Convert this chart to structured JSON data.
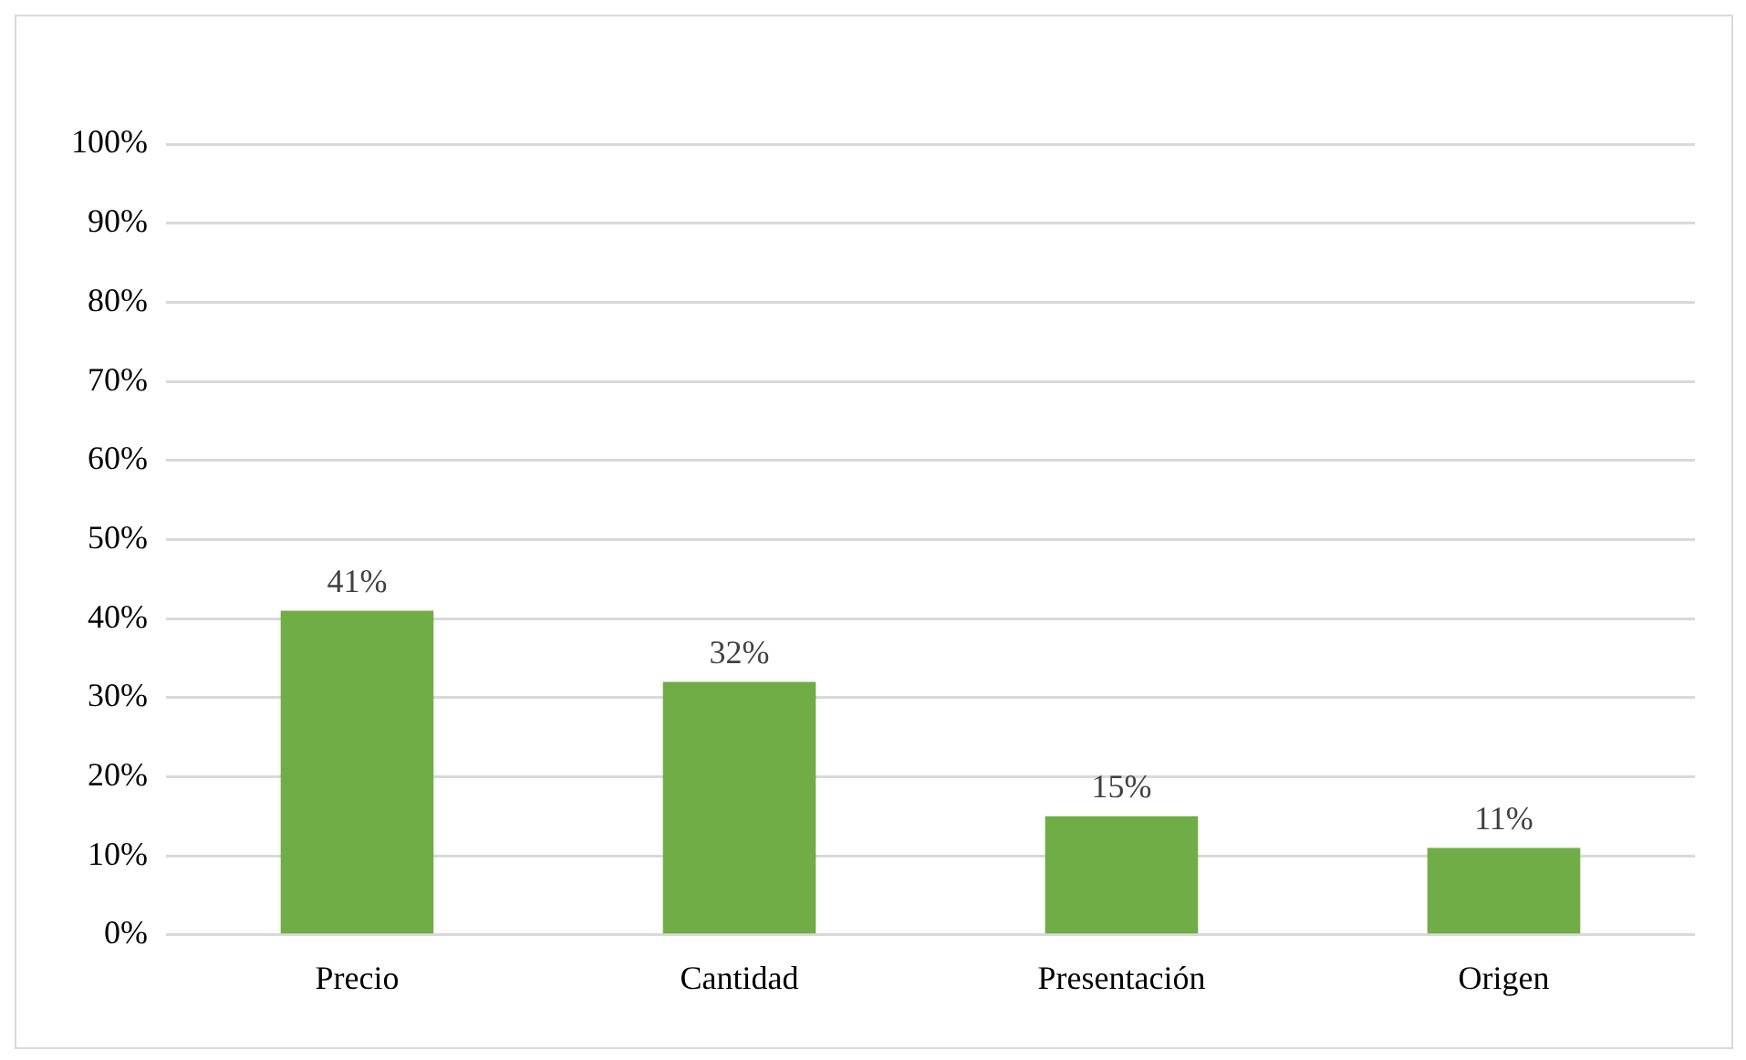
{
  "chart_data": {
    "type": "bar",
    "categories": [
      "Precio",
      "Cantidad",
      "Presentación",
      "Origen"
    ],
    "values": [
      41,
      32,
      15,
      11
    ],
    "color": "#70ad47",
    "ylim": [
      0,
      100
    ],
    "yticks": [
      {
        "value": 0,
        "label": "0%"
      },
      {
        "value": 10,
        "label": "10%"
      },
      {
        "value": 20,
        "label": "20%"
      },
      {
        "value": 30,
        "label": "30%"
      },
      {
        "value": 40,
        "label": "40%"
      },
      {
        "value": 50,
        "label": "50%"
      },
      {
        "value": 60,
        "label": "60%"
      },
      {
        "value": 70,
        "label": "70%"
      },
      {
        "value": 80,
        "label": "80%"
      },
      {
        "value": 90,
        "label": "90%"
      },
      {
        "value": 100,
        "label": "100%"
      }
    ],
    "value_labels": [
      "41%",
      "32%",
      "15%",
      "11%"
    ],
    "grid": "y",
    "legend": false
  }
}
